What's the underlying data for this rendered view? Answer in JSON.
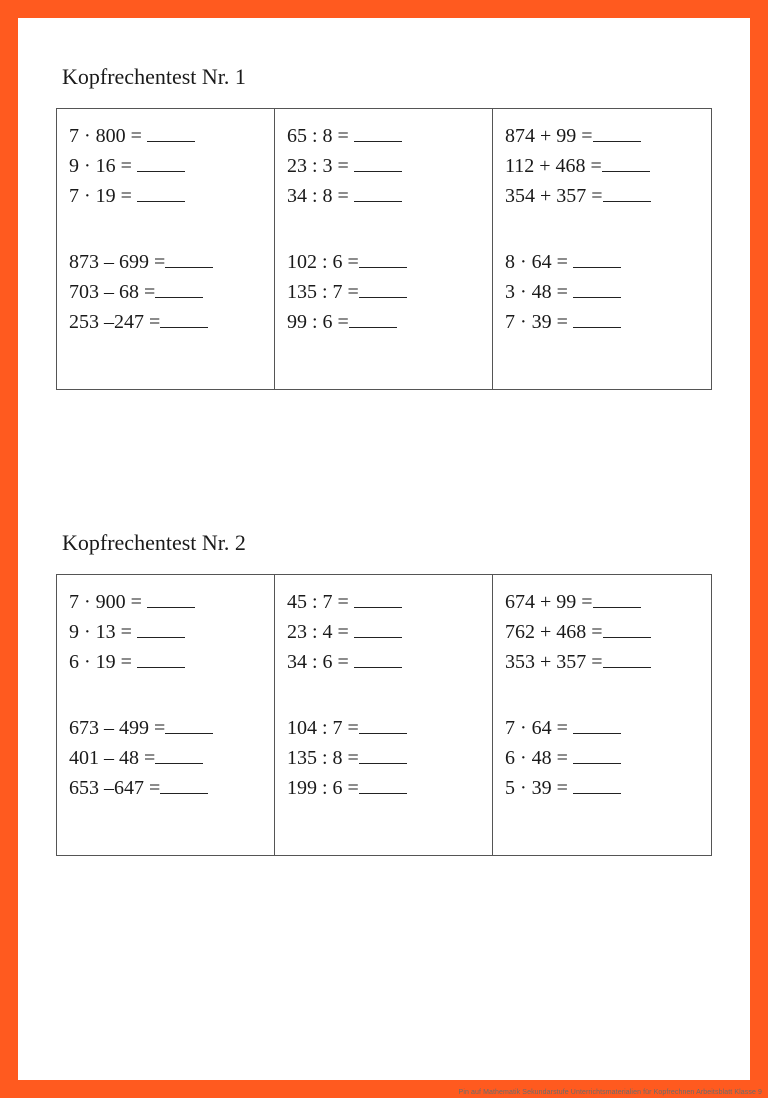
{
  "page": {
    "border_color": "#ff5a1f",
    "background_color": "#ffffff",
    "text_color": "#1a1a1a",
    "grid_border_color": "#555555",
    "blank_underline_color": "#222222",
    "font_family": "Times New Roman",
    "title_fontsize": 22,
    "line_fontsize": 20,
    "caption": "Pin auf Mathematik Sekundarstufe Unterrichtsmaterialien für Kopfrechnen Arbeitsblatt Klasse 9"
  },
  "tests": [
    {
      "title": "Kopfrechentest Nr. 1",
      "columns": [
        {
          "groups": [
            [
              "7 · 800 = ",
              "9 · 16 = ",
              "7 · 19 = "
            ],
            [
              "873 – 699 =",
              "703 –   68 =",
              "253 –247 ="
            ]
          ]
        },
        {
          "groups": [
            [
              "65 : 8 = ",
              "23 : 3 = ",
              "34 : 8 = "
            ],
            [
              "102 : 6  =",
              "135 : 7  =",
              "  99 : 6  ="
            ]
          ]
        },
        {
          "groups": [
            [
              "874 + 99 =",
              "112 + 468 =",
              "354 + 357 ="
            ],
            [
              "8 · 64 = ",
              "3 · 48 = ",
              "7 · 39 = "
            ]
          ]
        }
      ]
    },
    {
      "title": "Kopfrechentest Nr. 2",
      "columns": [
        {
          "groups": [
            [
              "7 · 900 = ",
              "9 · 13 = ",
              "6 · 19 = "
            ],
            [
              "673 – 499 =",
              "401 –   48 =",
              "653 –647 ="
            ]
          ]
        },
        {
          "groups": [
            [
              "45 : 7 = ",
              "23 : 4 = ",
              "34 : 6 = "
            ],
            [
              "104 : 7  =",
              "135 : 8  =",
              "199 : 6  ="
            ]
          ]
        },
        {
          "groups": [
            [
              "674 + 99 =",
              "762 + 468 =",
              "353 + 357 ="
            ],
            [
              "7 · 64 = ",
              "6 · 48 = ",
              "5 · 39 = "
            ]
          ]
        }
      ]
    }
  ]
}
